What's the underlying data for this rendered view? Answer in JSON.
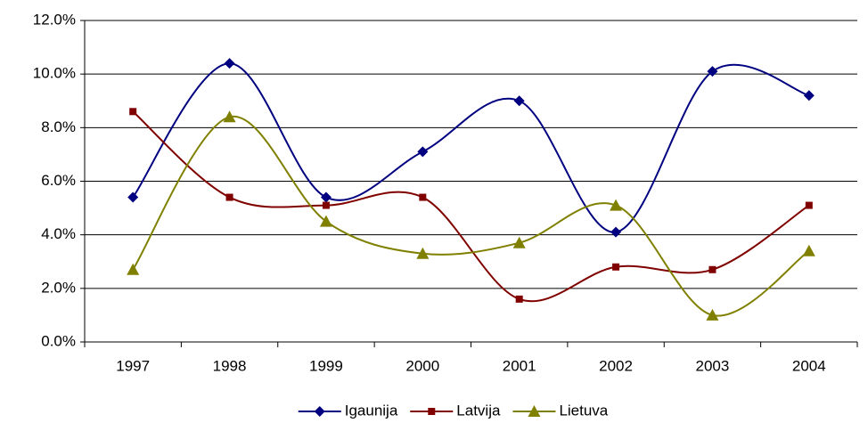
{
  "chart_data": {
    "type": "line",
    "categories": [
      "1997",
      "1998",
      "1999",
      "2000",
      "2001",
      "2002",
      "2003",
      "2004"
    ],
    "series": [
      {
        "name": "Igaunija",
        "color": "#000080",
        "marker": "diamond",
        "values": [
          5.4,
          10.4,
          5.4,
          7.1,
          9.0,
          4.1,
          10.1,
          9.2
        ]
      },
      {
        "name": "Latvija",
        "color": "#800000",
        "marker": "square",
        "values": [
          8.6,
          5.4,
          5.1,
          5.4,
          1.6,
          2.8,
          2.7,
          5.1
        ]
      },
      {
        "name": "Lietuva",
        "color": "#808000",
        "marker": "triangle",
        "values": [
          2.7,
          8.4,
          4.5,
          3.3,
          3.7,
          5.1,
          1.0,
          3.4
        ]
      }
    ],
    "ylim": [
      0,
      12
    ],
    "yticks": [
      {
        "value": 0,
        "label": "0.0%"
      },
      {
        "value": 2,
        "label": "2.0%"
      },
      {
        "value": 4,
        "label": "4.0%"
      },
      {
        "value": 6,
        "label": "6.0%"
      },
      {
        "value": 8,
        "label": "8.0%"
      },
      {
        "value": 10,
        "label": "10.0%"
      },
      {
        "value": 12,
        "label": "12.0%"
      }
    ],
    "grid": true,
    "smooth": true,
    "legend": "bottom"
  }
}
